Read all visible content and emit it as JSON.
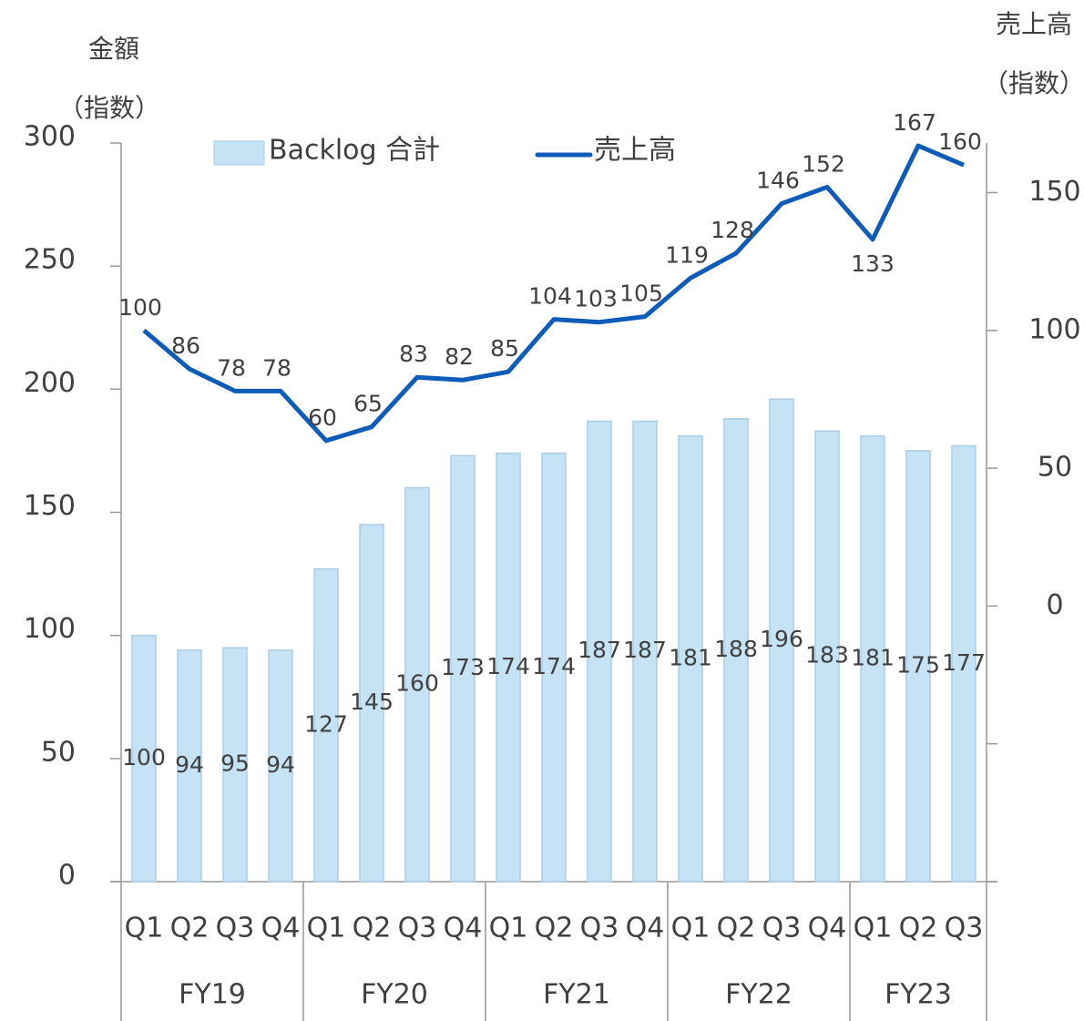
{
  "chart_data": {
    "type": "bar_line",
    "y_label": "金額",
    "y_label_unit": "（指数）",
    "y2_label": "売上高",
    "y2_label_unit": "（指数）",
    "categories": [
      "Q1",
      "Q2",
      "Q3",
      "Q4",
      "Q1",
      "Q2",
      "Q3",
      "Q4",
      "Q1",
      "Q2",
      "Q3",
      "Q4",
      "Q1",
      "Q2",
      "Q3",
      "Q4",
      "Q1",
      "Q2",
      "Q3"
    ],
    "groups": [
      {
        "name": "FY19",
        "count": 4
      },
      {
        "name": "FY20",
        "count": 4
      },
      {
        "name": "FY21",
        "count": 4
      },
      {
        "name": "FY22",
        "count": 4
      },
      {
        "name": "FY23",
        "count": 3
      }
    ],
    "series": [
      {
        "name": "Backlog 合計",
        "type": "bar",
        "color": "#c5e3f5",
        "axis": "y",
        "values": [
          100,
          94,
          95,
          94,
          127,
          145,
          160,
          173,
          174,
          174,
          187,
          187,
          181,
          188,
          196,
          183,
          181,
          175,
          177
        ]
      },
      {
        "name": "売上高",
        "type": "line",
        "color": "#0e5cb8",
        "axis": "y2",
        "values": [
          100,
          86,
          78,
          78,
          60,
          65,
          83,
          82,
          85,
          104,
          103,
          105,
          119,
          128,
          146,
          152,
          133,
          167,
          160
        ]
      }
    ],
    "ylim": [
      0,
      300
    ],
    "yticks": [
      0,
      50,
      100,
      150,
      200,
      250,
      300
    ],
    "y2lim": [
      -100,
      168
    ],
    "y2ticks": [
      {
        "value": -100,
        "label": null
      },
      {
        "value": -50,
        "label": null
      },
      0,
      50,
      100,
      150
    ]
  }
}
